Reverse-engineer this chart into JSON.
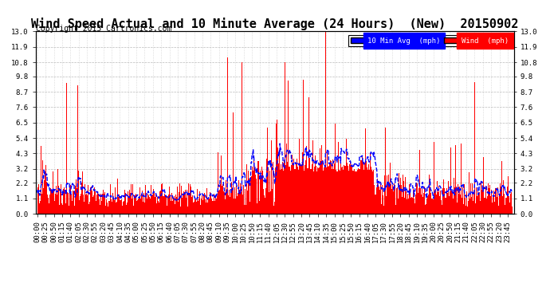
{
  "title": "Wind Speed Actual and 10 Minute Average (24 Hours)  (New)  20150902",
  "copyright": "Copyright 2015 Cartronics.com",
  "yticks": [
    0.0,
    1.1,
    2.2,
    3.2,
    4.3,
    5.4,
    6.5,
    7.6,
    8.7,
    9.8,
    10.8,
    11.9,
    13.0
  ],
  "wind_color": "#ff0000",
  "avg_color": "#0000ff",
  "bg_color": "#ffffff",
  "legend_wind_label": "Wind  (mph)",
  "legend_avg_label": "10 Min Avg  (mph)",
  "grid_color": "#bbbbbb",
  "title_fontsize": 11,
  "copyright_fontsize": 7,
  "tick_fontsize": 6.5
}
